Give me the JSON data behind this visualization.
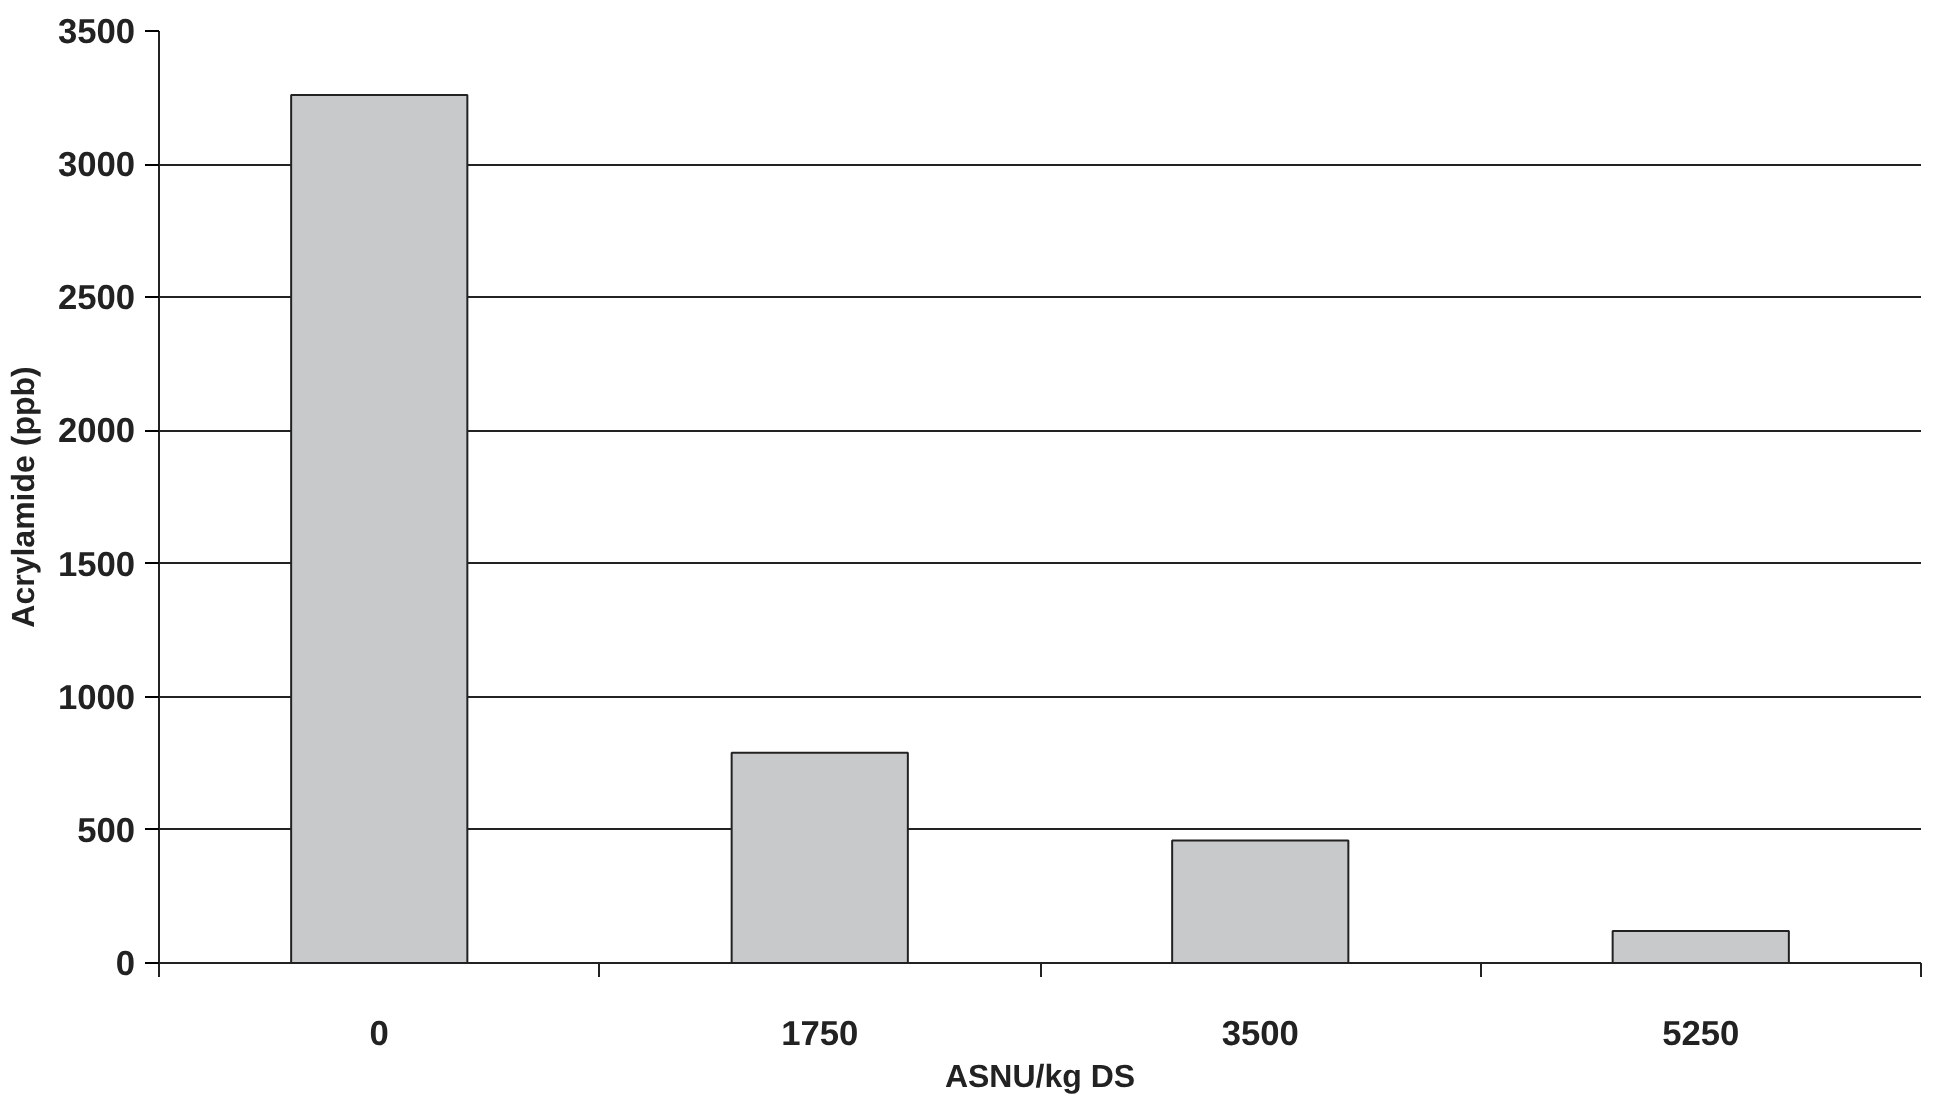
{
  "chart_data": {
    "type": "bar",
    "xlabel": "ASNU/kg DS",
    "ylabel": "Acrylamide (ppb)",
    "categories": [
      "0",
      "1750",
      "3500",
      "5250"
    ],
    "values": [
      3260,
      790,
      460,
      120
    ],
    "color": "#c8c9cb",
    "ylim": [
      0,
      3500
    ],
    "yticks": [
      0,
      500,
      1000,
      1500,
      2000,
      2500,
      3000,
      3500
    ],
    "grid": "y"
  }
}
